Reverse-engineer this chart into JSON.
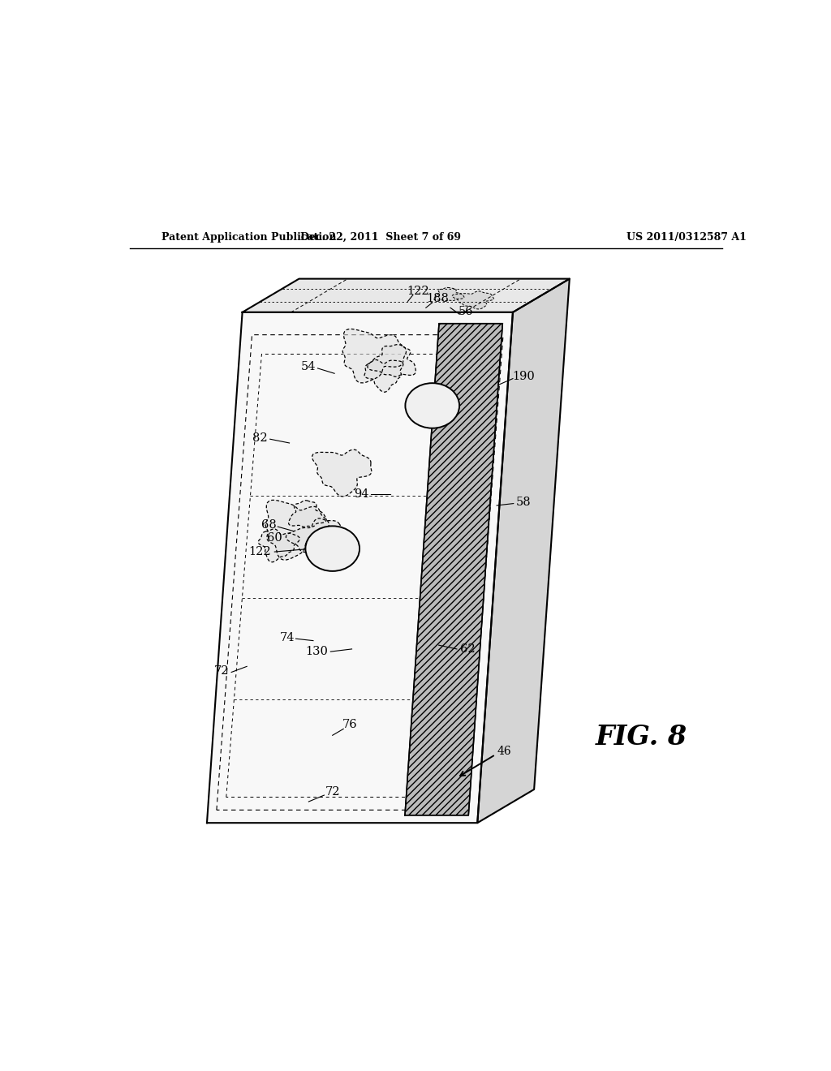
{
  "bg_color": "#ffffff",
  "header_left": "Patent Application Publication",
  "header_center": "Dec. 22, 2011  Sheet 7 of 69",
  "header_right": "US 2011/0312587 A1",
  "fig_label": "FIG. 8",
  "arrow_label": "46"
}
